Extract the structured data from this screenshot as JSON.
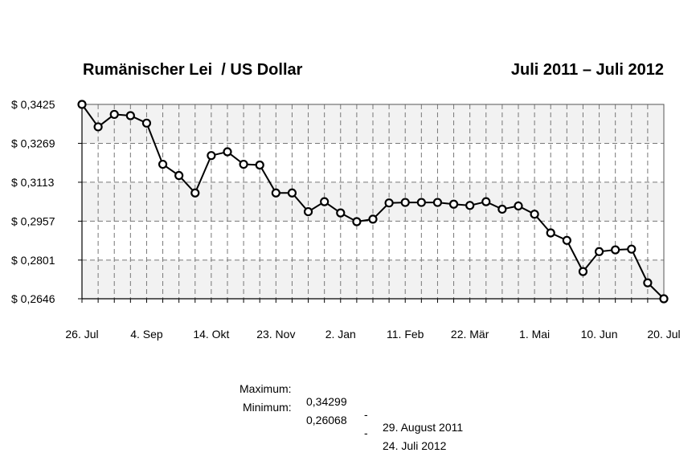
{
  "header": {
    "title": "Rumänischer Lei  / US Dollar",
    "period": "Juli 2011 – Juli 2012"
  },
  "stats": {
    "max_label": "Maximum:",
    "max_value": "0,34299",
    "max_sep": "-",
    "max_date": "29. August 2011",
    "min_label": "Minimum:",
    "min_value": "0,26068",
    "min_sep": "-",
    "min_date": "24. Juli 2012"
  },
  "chart_data": {
    "type": "line",
    "ytick_labels": [
      "$ 0,3425",
      "$ 0,3269",
      "$ 0,3113",
      "$ 0,2957",
      "$ 0,2801",
      "$ 0,2646"
    ],
    "yticks": [
      0.3425,
      0.3269,
      0.3113,
      0.2957,
      0.2801,
      0.2646
    ],
    "ylim": [
      0.2646,
      0.3425
    ],
    "xtick_labels": [
      "26. Jul",
      "4. Sep",
      "14. Okt",
      "23. Nov",
      "2. Jan",
      "11. Feb",
      "22. Mär",
      "1. Mai",
      "10. Jun",
      "20. Jul"
    ],
    "grid": true,
    "marker": "circle",
    "line_color": "#000000",
    "plot_background": "#f2f2f2",
    "series": [
      {
        "values": [
          0.3425,
          0.3335,
          0.3385,
          0.338,
          0.335,
          0.3185,
          0.314,
          0.307,
          0.322,
          0.3235,
          0.3185,
          0.3182,
          0.307,
          0.307,
          0.2995,
          0.3035,
          0.299,
          0.2955,
          0.2965,
          0.303,
          0.3032,
          0.3032,
          0.3032,
          0.3025,
          0.302,
          0.3035,
          0.3005,
          0.3018,
          0.2985,
          0.291,
          0.288,
          0.2755,
          0.2835,
          0.2842,
          0.2845,
          0.271,
          0.2646
        ]
      }
    ]
  }
}
